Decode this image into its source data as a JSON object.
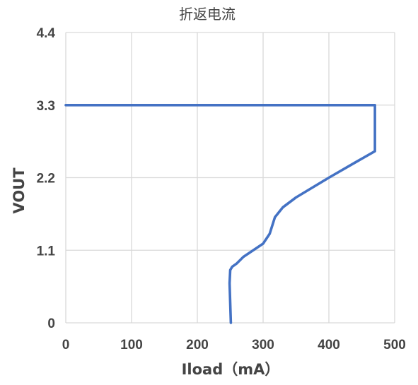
{
  "chart_data": {
    "type": "line",
    "title": "折返电流",
    "xlabel": "Iload（mA）",
    "ylabel": "VOUT",
    "xlim": [
      0,
      500
    ],
    "ylim": [
      0,
      4.4
    ],
    "x_ticks": [
      0,
      100,
      200,
      300,
      400,
      500
    ],
    "y_ticks": [
      "0",
      "1.1",
      "2.2",
      "3.3",
      "4.4"
    ],
    "grid": true,
    "series": [
      {
        "color": "#4472c4",
        "points": [
          [
            0,
            3.3
          ],
          [
            470,
            3.3
          ],
          [
            470,
            2.6
          ],
          [
            440,
            2.43
          ],
          [
            400,
            2.2
          ],
          [
            350,
            1.9
          ],
          [
            330,
            1.75
          ],
          [
            318,
            1.6
          ],
          [
            310,
            1.35
          ],
          [
            300,
            1.2
          ],
          [
            270,
            1.0
          ],
          [
            260,
            0.9
          ],
          [
            253,
            0.85
          ],
          [
            250,
            0.8
          ],
          [
            249,
            0.6
          ],
          [
            250,
            0.3
          ],
          [
            251,
            0
          ]
        ]
      }
    ]
  }
}
